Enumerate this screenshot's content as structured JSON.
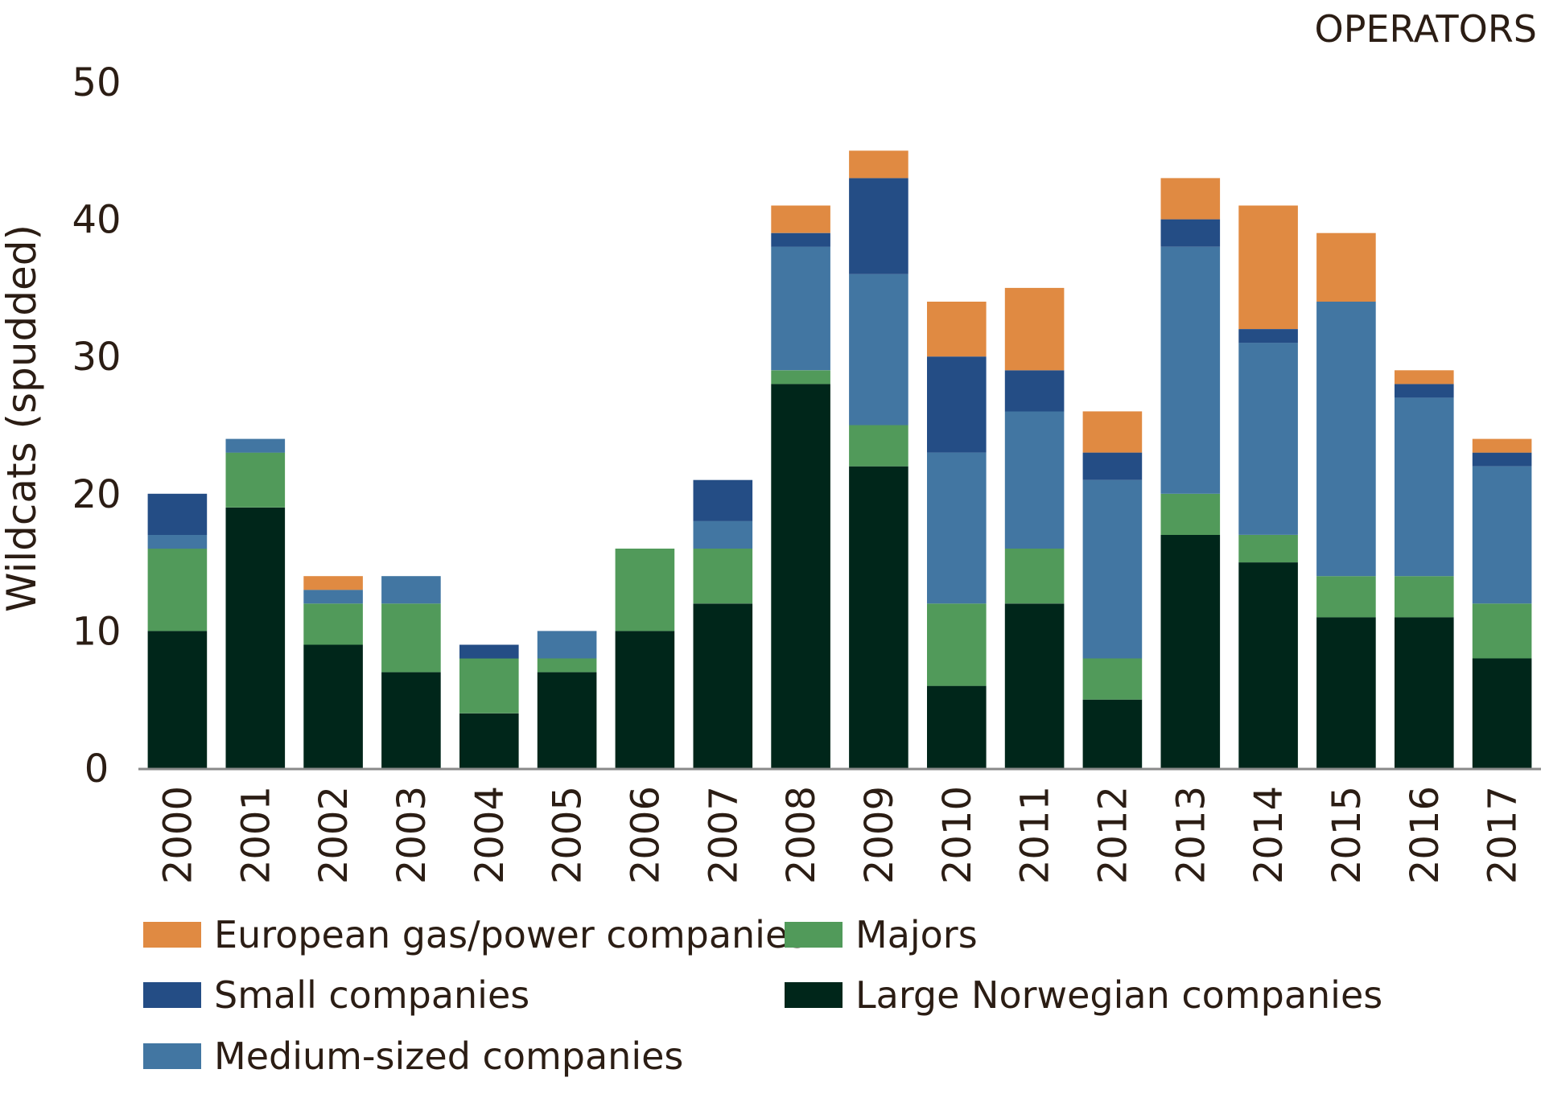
{
  "chart_data": {
    "type": "bar",
    "stacked": true,
    "title": "OPERATORS",
    "xlabel": "",
    "ylabel": "Wildcats (spudded)",
    "ylim": [
      0,
      50
    ],
    "yticks": [
      "0",
      "10",
      "20",
      "30",
      "40",
      "50"
    ],
    "categories": [
      "2000",
      "2001",
      "2002",
      "2003",
      "2004",
      "2005",
      "2006",
      "2007",
      "2008",
      "2009",
      "2010",
      "2011",
      "2012",
      "2013",
      "2014",
      "2015",
      "2016",
      "2017"
    ],
    "series": [
      {
        "name": "Large Norwegian companies",
        "color": "#00261a",
        "values": [
          10,
          19,
          9,
          7,
          4,
          7,
          10,
          12,
          28,
          22,
          6,
          12,
          5,
          17,
          15,
          11,
          11,
          8
        ]
      },
      {
        "name": "Majors",
        "color": "#519a5a",
        "values": [
          6,
          4,
          3,
          5,
          4,
          1,
          6,
          4,
          1,
          3,
          6,
          4,
          3,
          3,
          2,
          3,
          3,
          4
        ]
      },
      {
        "name": "Medium-sized companies",
        "color": "#4276a2",
        "values": [
          1,
          1,
          1,
          2,
          0,
          2,
          0,
          2,
          9,
          11,
          11,
          10,
          13,
          18,
          14,
          20,
          13,
          10
        ]
      },
      {
        "name": "Small companies",
        "color": "#244d85",
        "values": [
          3,
          0,
          0,
          0,
          1,
          0,
          0,
          3,
          1,
          7,
          7,
          3,
          2,
          2,
          1,
          0,
          1,
          1
        ]
      },
      {
        "name": "European gas/power companies",
        "color": "#e08a42",
        "values": [
          0,
          0,
          1,
          0,
          0,
          0,
          0,
          0,
          2,
          2,
          4,
          6,
          3,
          3,
          9,
          5,
          1,
          1
        ]
      }
    ],
    "legend": {
      "placement": "bottom",
      "order": [
        "European gas/power companies",
        "Majors",
        "Small companies",
        "Large Norwegian companies",
        "Medium-sized companies"
      ]
    }
  }
}
